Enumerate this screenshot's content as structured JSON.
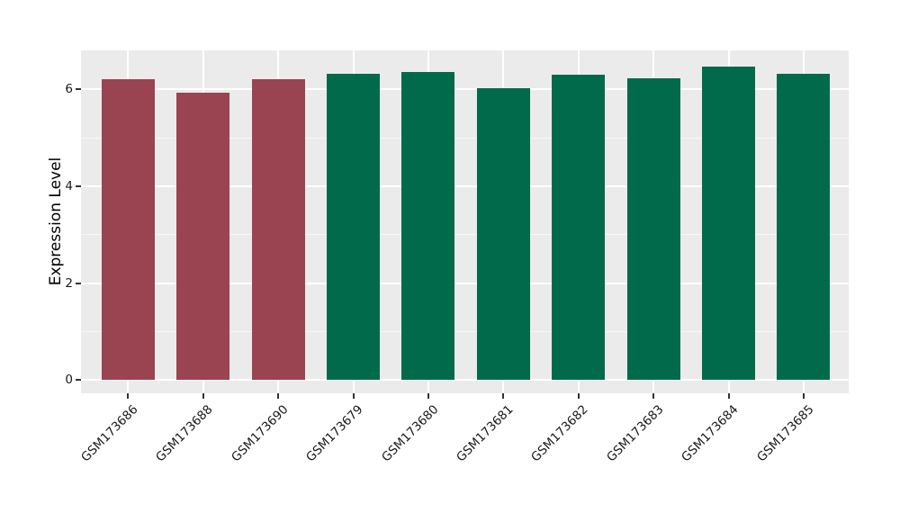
{
  "chart_data": {
    "type": "bar",
    "title": "",
    "xlabel": "",
    "ylabel": "Expression Level",
    "categories": [
      "GSM173686",
      "GSM173688",
      "GSM173690",
      "GSM173679",
      "GSM173680",
      "GSM173681",
      "GSM173682",
      "GSM173683",
      "GSM173684",
      "GSM173685"
    ],
    "values": [
      6.2,
      5.92,
      6.21,
      6.31,
      6.36,
      6.02,
      6.3,
      6.22,
      6.46,
      6.32
    ],
    "bar_colors": [
      "#9A4451",
      "#9A4451",
      "#9A4451",
      "#016A4B",
      "#016A4B",
      "#016A4B",
      "#016A4B",
      "#016A4B",
      "#016A4B",
      "#016A4B"
    ],
    "group_colors": {
      "maroon": "#9A4451",
      "green": "#016A4B"
    },
    "yticks": [
      0,
      2,
      4,
      6
    ],
    "yticks_minor": [
      1,
      3,
      5
    ],
    "ylim": [
      -0.27,
      6.8
    ],
    "grid": true,
    "legend": false,
    "panel_bg": "#EBEBEB",
    "grid_color": "#FFFFFF"
  }
}
